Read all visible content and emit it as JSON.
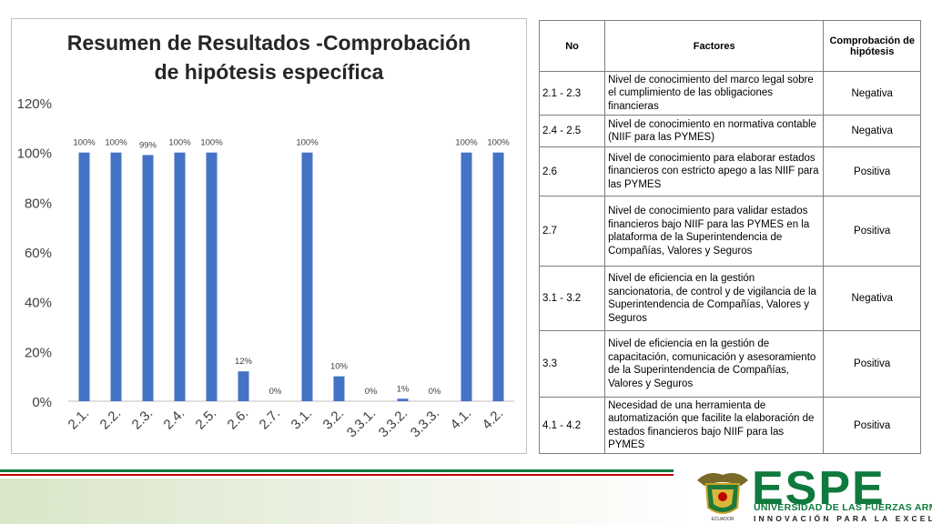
{
  "chart_data": {
    "type": "bar",
    "title_lines": [
      "Resumen de Resultados -Comprobación",
      "de hipótesis específica"
    ],
    "categories": [
      "2.1.",
      "2.2.",
      "2.3.",
      "2.4.",
      "2.5.",
      "2.6.",
      "2.7.",
      "3.1.",
      "3.2.",
      "3.3.1.",
      "3.3.2.",
      "3.3.3.",
      "4.1.",
      "4.2."
    ],
    "values": [
      100,
      100,
      99,
      100,
      100,
      12,
      0,
      100,
      10,
      0,
      1,
      0,
      100,
      100
    ],
    "data_labels": [
      "100%",
      "100%",
      "99%",
      "100%",
      "100%",
      "12%",
      "0%",
      "100%",
      "10%",
      "0%",
      "1%",
      "0%",
      "100%",
      "100%"
    ],
    "y_ticks": [
      "0%",
      "20%",
      "40%",
      "60%",
      "80%",
      "100%",
      "120%"
    ],
    "ylim": [
      0,
      120
    ],
    "grid": false,
    "legend": "none",
    "bar_color": "#4472c4"
  },
  "table": {
    "headers": [
      "No",
      "Factores",
      "Comprobación de hipótesis"
    ],
    "rows": [
      {
        "no": "2.1 - 2.3",
        "factor": "Nivel de conocimiento del marco legal sobre el cumplimiento de las obligaciones financieras",
        "result": "Negativa"
      },
      {
        "no": "2.4 - 2.5",
        "factor": "Nivel de conocimiento en normativa contable (NIIF para las PYMES)",
        "result": "Negativa"
      },
      {
        "no": "2.6",
        "factor": "Nivel de conocimiento para elaborar estados financieros con estricto apego a las NIIF para las PYMES",
        "result": "Positiva"
      },
      {
        "no": "2.7",
        "factor": "Nivel de conocimiento para validar estados financieros bajo NIIF para las PYMES en la plataforma de la Superintendencia de Compañías, Valores y Seguros",
        "result": "Positiva"
      },
      {
        "no": "3.1 - 3.2",
        "factor": "Nivel de eficiencia en la gestión sancionatoria, de control y de vigilancia de la Superintendencia de Compañías, Valores y Seguros",
        "result": "Negativa"
      },
      {
        "no": "3.3",
        "factor": "Nivel de eficiencia en la gestión de capacitación, comunicación y asesoramiento de la Superintendencia de Compañías, Valores y Seguros",
        "result": "Positiva"
      },
      {
        "no": "4.1 - 4.2",
        "factor": "Necesidad de una herramienta de automatización que facilite la elaboración de estados financieros bajo NIIF para las PYMES",
        "result": "Positiva"
      }
    ]
  },
  "logo": {
    "name": "ESPE",
    "subtitle": "UNIVERSIDAD DE LAS FUERZAS ARMADAS",
    "tagline": "INNOVACIÓN PARA LA EXCELENCIA",
    "crest_text": "ECUADOR"
  },
  "colors": {
    "green": "#0f7a3d",
    "red": "#c00000",
    "bar": "#4472c4"
  }
}
